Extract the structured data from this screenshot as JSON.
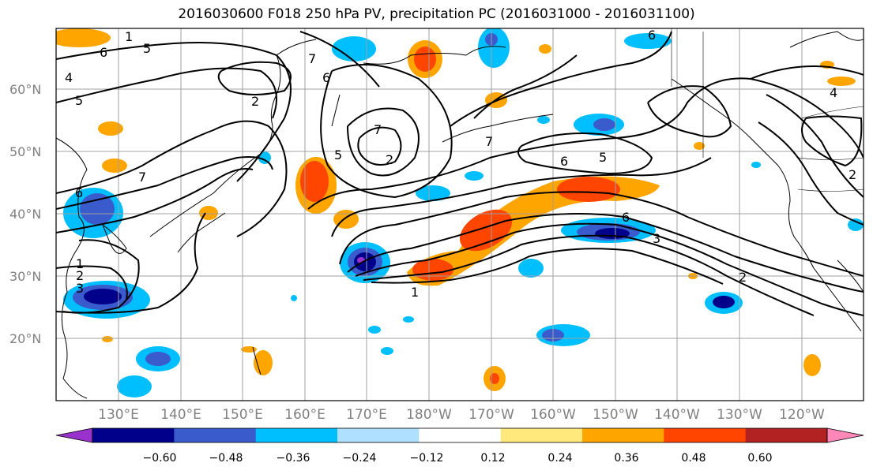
{
  "title": "2016030600 F018 250 hPa PV, precipitation PC (2016031000 - 2016031100)",
  "lat_labels": [
    "60°N",
    "50°N",
    "40°N",
    "30°N",
    "20°N"
  ],
  "lon_labels": [
    "130°E",
    "140°E",
    "150°E",
    "160°E",
    "170°E",
    "180°W",
    "170°W",
    "160°W",
    "150°W",
    "140°W",
    "130°W",
    "120°W"
  ],
  "colorbar": {
    "ticks": [
      "−0.60",
      "−0.48",
      "−0.36",
      "−0.24",
      "−0.12",
      "0.12",
      "0.24",
      "0.36",
      "0.48",
      "0.60"
    ],
    "colors": [
      "#9932CC",
      "#00008B",
      "#3A5BCC",
      "#00BFFF",
      "#B0E0FF",
      "#FFFFFF",
      "#FFE87C",
      "#FFA500",
      "#FF4500",
      "#B22222",
      "#FF88B8"
    ]
  },
  "contour_labels": [
    "6",
    "5",
    "1",
    "7",
    "4",
    "2",
    "6",
    "7",
    "5",
    "2",
    "6",
    "5",
    "7",
    "2",
    "1",
    "3",
    "2",
    "6",
    "7",
    "5",
    "3",
    "6",
    "4",
    "1",
    "2",
    "6"
  ]
}
